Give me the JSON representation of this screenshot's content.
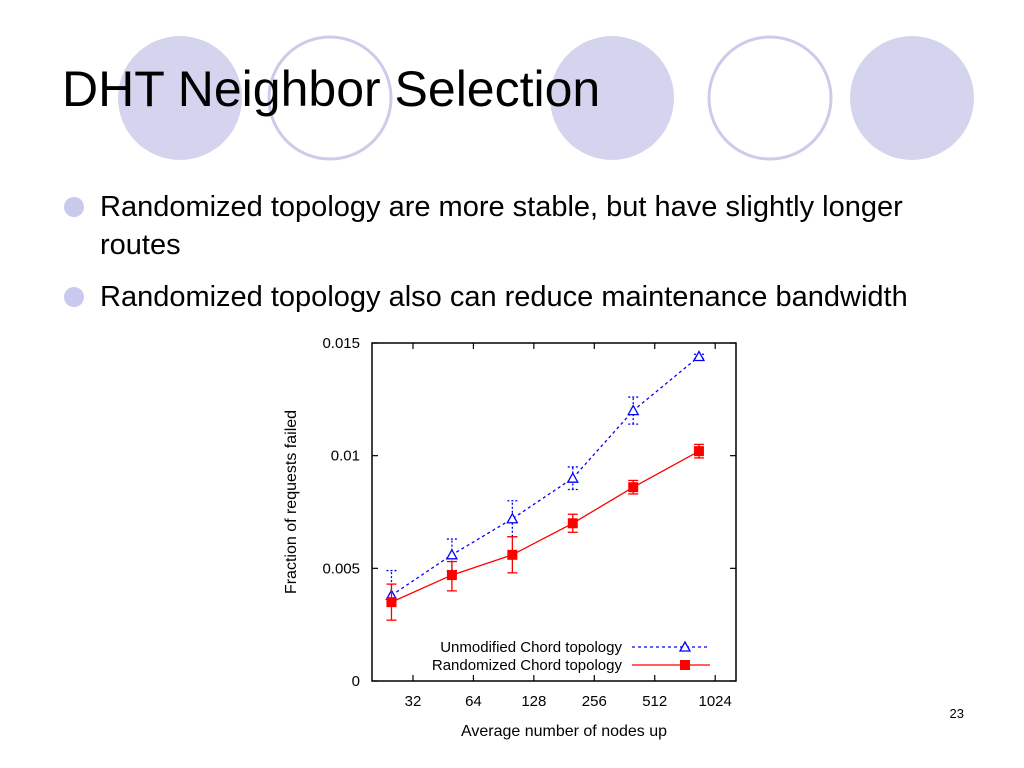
{
  "slide": {
    "title": "DHT Neighbor Selection",
    "bullets": [
      "Randomized topology are more stable, but have slightly longer routes",
      "Randomized topology also can reduce maintenance bandwidth"
    ],
    "page_number": "23",
    "colors": {
      "circle_fill": "#d4d4ee",
      "circle_outline": "#ccccea",
      "bullet": "#c9c9ee"
    }
  },
  "chart_data": {
    "type": "line",
    "xlabel": "Average number of nodes up",
    "ylabel": "Fraction of requests failed",
    "x_scale": "log2",
    "x_ticks": [
      "32",
      "64",
      "128",
      "256",
      "512",
      "1024"
    ],
    "x_tick_values": [
      32,
      64,
      128,
      256,
      512,
      1024
    ],
    "xlim": [
      20,
      1300
    ],
    "y_ticks": [
      "0",
      "0.005",
      "0.01",
      "0.015"
    ],
    "y_tick_values": [
      0,
      0.005,
      0.01,
      0.015
    ],
    "ylim": [
      0,
      0.015
    ],
    "legend_position": "bottom-right",
    "grid": false,
    "series": [
      {
        "name": "Unmodified Chord topology",
        "color": "#0000ff",
        "line_style": "dotted",
        "marker": "triangle-open",
        "x": [
          25,
          50,
          100,
          200,
          400,
          850
        ],
        "y": [
          0.0038,
          0.0056,
          0.0072,
          0.009,
          0.012,
          0.0144
        ],
        "err_low": [
          0.0035,
          0.0049,
          0.0064,
          0.0085,
          0.0114,
          0.0143
        ],
        "err_high": [
          0.0049,
          0.0063,
          0.008,
          0.0095,
          0.0126,
          0.0145
        ]
      },
      {
        "name": "Randomized Chord topology",
        "color": "#ff0000",
        "line_style": "solid",
        "marker": "square-filled",
        "x": [
          25,
          50,
          100,
          200,
          400,
          850
        ],
        "y": [
          0.0035,
          0.0047,
          0.0056,
          0.007,
          0.0086,
          0.0102
        ],
        "err_low": [
          0.0027,
          0.004,
          0.0048,
          0.0066,
          0.0083,
          0.0099
        ],
        "err_high": [
          0.0043,
          0.0053,
          0.0064,
          0.0074,
          0.0089,
          0.0105
        ]
      }
    ]
  }
}
